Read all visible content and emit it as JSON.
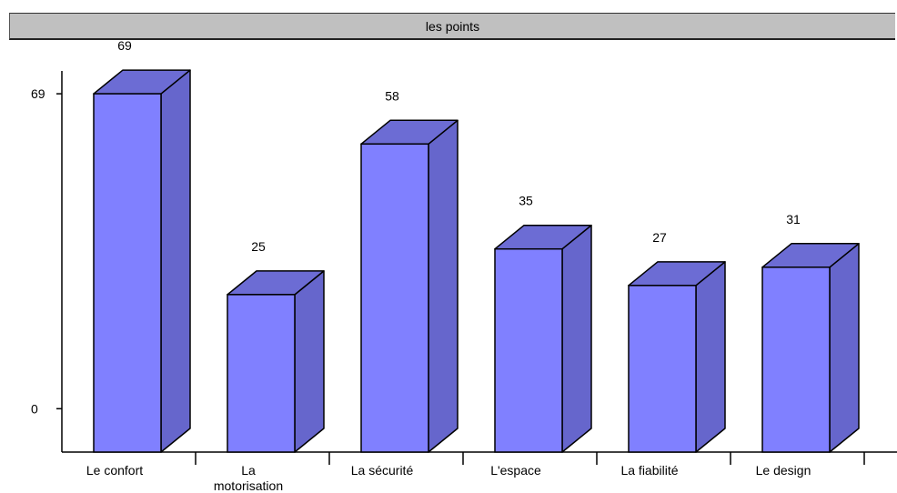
{
  "chart_data": {
    "type": "bar",
    "title": "les points",
    "categories": [
      "Le confort",
      "La motorisation",
      "La sécurité",
      "L'espace",
      "La fiabilité",
      "Le design"
    ],
    "category_lines": [
      [
        "Le confort"
      ],
      [
        "La",
        "motorisation"
      ],
      [
        "La sécurité"
      ],
      [
        "L'espace"
      ],
      [
        "La fiabilité"
      ],
      [
        "Le design"
      ]
    ],
    "values": [
      69,
      25,
      58,
      35,
      27,
      31
    ],
    "data_labels": [
      "69",
      "25",
      "58",
      "35",
      "27",
      "31"
    ],
    "y_ticks": [
      0,
      69
    ],
    "y_tick_labels": [
      "0",
      "69"
    ],
    "ylim": [
      -9.5,
      74
    ],
    "bar_style": "3d",
    "grid": false,
    "legend": "none",
    "colors": {
      "front": "#8080ff",
      "top": "#6c6cd4",
      "side": "#6666cc",
      "edge": "#000000"
    }
  }
}
